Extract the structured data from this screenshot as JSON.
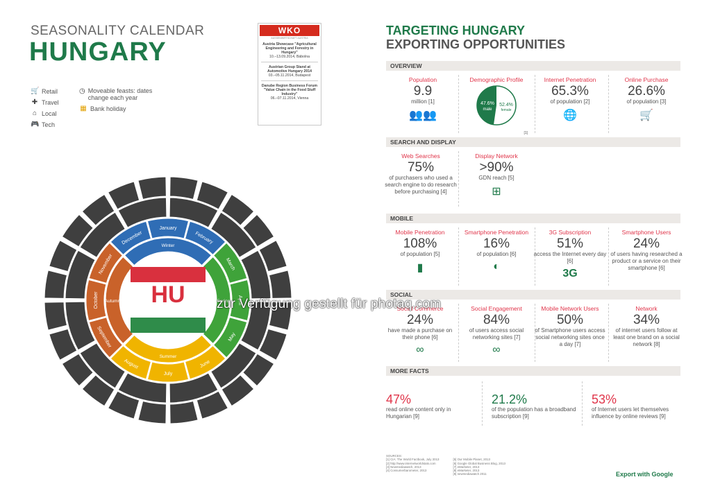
{
  "left": {
    "title_small": "SEASONALITY CALENDAR",
    "title_big": "HUNGARY",
    "legend_left": [
      {
        "icon": "cart-icon",
        "glyph": "🛒",
        "label": "Retail"
      },
      {
        "icon": "travel-icon",
        "glyph": "✚",
        "label": "Travel"
      },
      {
        "icon": "home-icon",
        "glyph": "⌂",
        "label": "Local"
      },
      {
        "icon": "gamepad-icon",
        "glyph": "🎮",
        "label": "Tech"
      }
    ],
    "legend_right": [
      {
        "icon": "clock-icon",
        "glyph": "◷",
        "label": "Moveable feasts: dates change each year"
      },
      {
        "icon": "calendar-icon",
        "glyph": "▦",
        "label": "Bank holiday"
      }
    ],
    "center_label": "HU",
    "months": [
      "January",
      "February",
      "March",
      "April",
      "May",
      "June",
      "July",
      "August",
      "September",
      "October",
      "November",
      "December"
    ],
    "seasons": [
      "Winter",
      "Spring",
      "Summer",
      "Autumn"
    ],
    "colors": {
      "winter": "#2f6db5",
      "spring": "#3fa33a",
      "summer": "#f0b400",
      "autumn": "#c9622a",
      "dark": "#3f3f3f",
      "flag_red": "#d9303e",
      "flag_green": "#2f8c4a"
    }
  },
  "wko": {
    "logo": "WKO",
    "sub": "AUSSENWIRTSCHAFT AUSTRIA",
    "events": [
      {
        "title": "Austria Showcase \"Agricultural Engineering and Forestry in Hungary\"",
        "when": "10.–13.09.2014, Bábolna"
      },
      {
        "title": "Austrian Group Stand at Automotive Hungary 2014",
        "when": "03.–05.11.2014, Budapest"
      },
      {
        "title": "Danube Region Business Forum \"Value Chain in the Food Stuff Industry\"",
        "when": "06.–07.11.2014, Vienna"
      }
    ]
  },
  "right": {
    "title1": "TARGETING HUNGARY",
    "title2": "EXPORTING OPPORTUNITIES",
    "overview": {
      "label": "OVERVIEW",
      "population": {
        "label": "Population",
        "value": "9.9",
        "desc": "million [1]"
      },
      "demographic": {
        "label": "Demographic Profile",
        "male_pct": "47.6%",
        "male": "male",
        "female_pct": "52.4%",
        "female": "female",
        "note": "[1]"
      },
      "internet": {
        "label": "Internet Penetration",
        "value": "65.3%",
        "desc": "of population [2]"
      },
      "online": {
        "label": "Online Purchase",
        "value": "26.6%",
        "desc": "of population [3]"
      }
    },
    "search": {
      "label": "SEARCH AND DISPLAY",
      "web": {
        "label": "Web Searches",
        "value": "75%",
        "desc": "of purchasers who used a search engine to do research before purchasing [4]"
      },
      "display": {
        "label": "Display Network",
        "value": ">90%",
        "desc": "GDN reach [5]"
      }
    },
    "mobile": {
      "label": "MOBILE",
      "items": [
        {
          "label": "Mobile Penetration",
          "value": "108%",
          "desc": "of population [5]",
          "glyph": "▮"
        },
        {
          "label": "Smartphone Penetration",
          "value": "16%",
          "desc": "of population [6]",
          "glyph": "◐"
        },
        {
          "label": "3G Subscription",
          "value": "51%",
          "desc": "access the Internet every day [6]",
          "glyph": "3G"
        },
        {
          "label": "Smartphone Users",
          "value": "24%",
          "desc": "of users having researched a product or a service on their smartphone [6]",
          "glyph": ""
        }
      ]
    },
    "social": {
      "label": "SOCIAL",
      "items": [
        {
          "label": "Social Commerce",
          "value": "24%",
          "desc": "have made a purchase on their phone [6]"
        },
        {
          "label": "Social Engagement",
          "value": "84%",
          "desc": "of users access social networking sites [7]"
        },
        {
          "label": "Mobile Network Users",
          "value": "50%",
          "desc": "of Smartphone users access social networking sites once a day [7]"
        },
        {
          "label": "Network",
          "value": "34%",
          "desc": "of internet users follow at least one brand on a social network [8]"
        }
      ]
    },
    "more": {
      "label": "MORE FACTS",
      "items": [
        {
          "value": "47%",
          "desc": "read online content only in Hungarian [9]",
          "color": "#e0354a"
        },
        {
          "value": "21.2%",
          "desc": "of the population has a broadband subscription [9]",
          "color": "#1f7a4a"
        },
        {
          "value": "53%",
          "desc": "of Internet users let themselves influence by online reviews [9]",
          "color": "#e0354a"
        }
      ]
    },
    "sources_title": "SOURCES:",
    "sources_left": [
      "[1] CIA: The World Factbook, July 2013",
      "[2] http://www.internetworldstats.com",
      "[3] Newmediawatch, 2013",
      "[4] Consumerbarometer, 2013"
    ],
    "sources_right": [
      "[5] Our Mobile Planet, 2013",
      "[6] Google Global Business Blog, 2013",
      "[7] eMarketer, 2013",
      "[8] eMarketer, 2013",
      "[9] newmediawatch 2011"
    ],
    "export": "Export with Google"
  },
  "watermark": "zur Verfügung gestellt für photaq.com"
}
